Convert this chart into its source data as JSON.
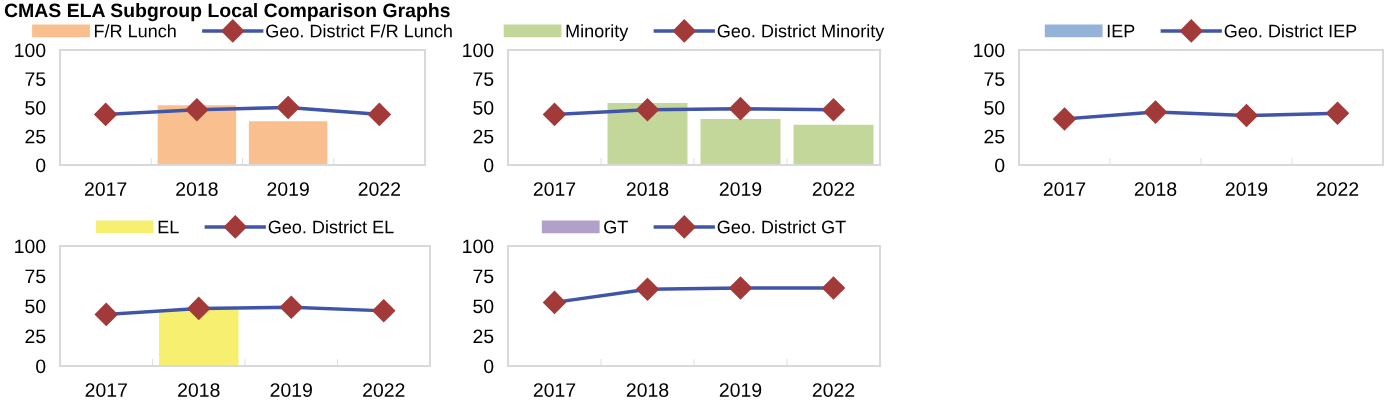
{
  "chart_data": [
    {
      "type": "bar",
      "title": "CMAS ELA Subgroup Local Comparison Graphs",
      "categories": [
        "2017",
        "2018",
        "2019",
        "2022"
      ],
      "ylim": [
        0,
        100
      ],
      "yticks": [
        0,
        25,
        50,
        75,
        100
      ],
      "grid": false,
      "legend": "top",
      "marker": "diamond",
      "series": [
        {
          "name": "F/R Lunch",
          "color": "#f9bf8f",
          "values": [
            null,
            52,
            38,
            null
          ]
        },
        {
          "name": "Geo. District F/R Lunch",
          "type": "line",
          "color": "#4055a8",
          "colors": [
            "#a33a3a",
            "#a33a3a",
            "#a33a3a",
            "#a33a3a"
          ],
          "values": [
            44,
            48,
            50,
            44
          ]
        }
      ]
    },
    {
      "type": "bar",
      "categories": [
        "2017",
        "2018",
        "2019",
        "2022"
      ],
      "ylim": [
        0,
        100
      ],
      "yticks": [
        0,
        25,
        50,
        75,
        100
      ],
      "grid": false,
      "legend": "top",
      "marker": "diamond",
      "series": [
        {
          "name": "Minority",
          "color": "#c4d79b",
          "values": [
            null,
            54,
            40,
            35
          ]
        },
        {
          "name": "Geo. District Minority",
          "type": "line",
          "color": "#4055a8",
          "colors": [
            "#a33a3a",
            "#a33a3a",
            "#a33a3a",
            "#a33a3a"
          ],
          "values": [
            44,
            48,
            49,
            48
          ]
        }
      ]
    },
    {
      "type": "bar",
      "categories": [
        "2017",
        "2018",
        "2019",
        "2022"
      ],
      "ylim": [
        0,
        100
      ],
      "yticks": [
        0,
        25,
        50,
        75,
        100
      ],
      "grid": false,
      "legend": "top",
      "marker": "diamond",
      "series": [
        {
          "name": "IEP",
          "color": "#95b3d7",
          "values": [
            null,
            null,
            null,
            null
          ]
        },
        {
          "name": "Geo. District IEP",
          "type": "line",
          "color": "#4055a8",
          "colors": [
            "#a33a3a",
            "#a33a3a",
            "#a33a3a",
            "#a33a3a"
          ],
          "values": [
            40,
            46,
            43,
            45
          ]
        }
      ]
    },
    {
      "type": "bar",
      "categories": [
        "2017",
        "2018",
        "2019",
        "2022"
      ],
      "ylim": [
        0,
        100
      ],
      "yticks": [
        0,
        25,
        50,
        75,
        100
      ],
      "grid": false,
      "legend": "top",
      "marker": "diamond",
      "series": [
        {
          "name": "EL",
          "color": "#f7ef6f",
          "values": [
            null,
            47,
            null,
            null
          ]
        },
        {
          "name": "Geo. District EL",
          "type": "line",
          "color": "#4055a8",
          "colors": [
            "#a33a3a",
            "#a33a3a",
            "#a33a3a",
            "#a33a3a"
          ],
          "values": [
            43,
            48,
            49,
            46
          ]
        }
      ]
    },
    {
      "type": "bar",
      "categories": [
        "2017",
        "2018",
        "2019",
        "2022"
      ],
      "ylim": [
        0,
        100
      ],
      "yticks": [
        0,
        25,
        50,
        75,
        100
      ],
      "grid": false,
      "legend": "top",
      "marker": "diamond",
      "series": [
        {
          "name": "GT",
          "color": "#b1a0c7",
          "values": [
            null,
            null,
            null,
            null
          ]
        },
        {
          "name": "Geo. District GT",
          "type": "line",
          "color": "#4055a8",
          "colors": [
            "#a33a3a",
            "#a33a3a",
            "#a33a3a",
            "#a33a3a"
          ],
          "values": [
            53,
            64,
            65,
            65
          ]
        }
      ]
    }
  ]
}
